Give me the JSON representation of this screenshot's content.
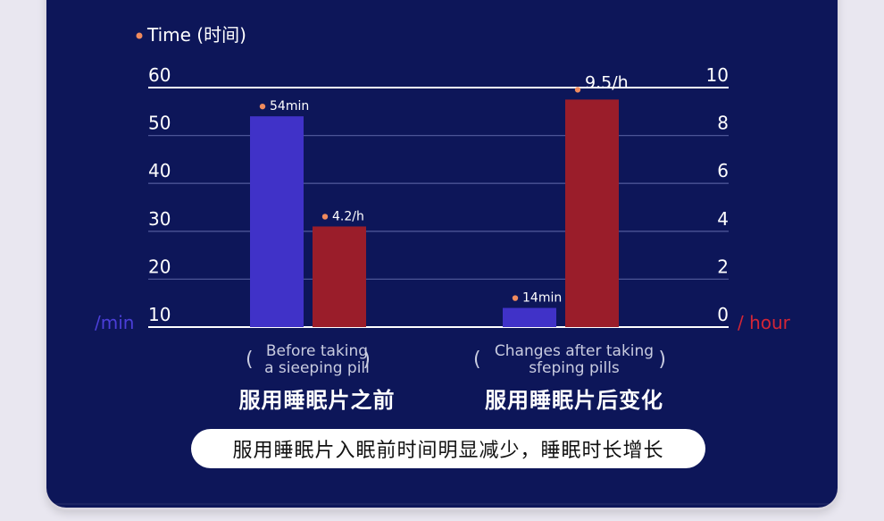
{
  "chart_data": {
    "type": "bar",
    "title": "Time (时间)",
    "categories": [
      {
        "en_lines": [
          "Before taking",
          "a sieeping pill"
        ],
        "cn": "服用睡眠片之前"
      },
      {
        "en_lines": [
          "Changes after taking",
          "sfeping pills"
        ],
        "cn": "服用睡眠片后变化"
      }
    ],
    "series": [
      {
        "name": "min",
        "axis": "left",
        "color": "#4032c8",
        "values": [
          54,
          14
        ],
        "labels": [
          "54min",
          "14min"
        ]
      },
      {
        "name": "hour",
        "axis": "right",
        "color": "#9a1d2a",
        "values": [
          4.2,
          9.5
        ],
        "labels": [
          "4.2/h",
          "9.5/h"
        ]
      }
    ],
    "left_axis": {
      "ticks": [
        10,
        20,
        30,
        40,
        50,
        60
      ],
      "min": 10,
      "max": 60,
      "unit_label": "/min",
      "unit_color": "#4b3ed8"
    },
    "right_axis": {
      "ticks": [
        0,
        2,
        4,
        6,
        8,
        10
      ],
      "min": 0,
      "max": 10,
      "unit_label": "/ hour",
      "unit_color": "#d42536"
    },
    "grid": true,
    "marker_color": "#f08a5d"
  },
  "summary_text": "服用睡眠片入眠前时间明显减少，睡眠时长增长"
}
